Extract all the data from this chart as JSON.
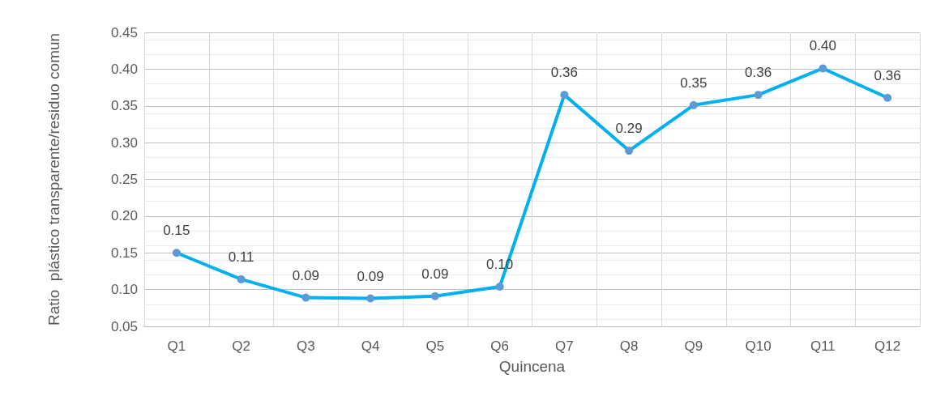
{
  "chart_data": {
    "type": "line",
    "xlabel": "Quincena",
    "ylabel": "Ratio  plástico transparente/residuo comun",
    "categories": [
      "Q1",
      "Q2",
      "Q3",
      "Q4",
      "Q5",
      "Q6",
      "Q7",
      "Q8",
      "Q9",
      "Q10",
      "Q11",
      "Q12"
    ],
    "series": [
      {
        "color": "#00b0f0",
        "values": [
          0.15,
          0.114,
          0.089,
          0.088,
          0.091,
          0.104,
          0.365,
          0.289,
          0.351,
          0.365,
          0.401,
          0.361
        ],
        "value_labels": [
          "0.15",
          "0.11",
          "0.09",
          "0.09",
          "0.09",
          "0.10",
          "0.36",
          "0.29",
          "0.35",
          "0.36",
          "0.40",
          "0.36"
        ]
      }
    ],
    "ylim": [
      0.05,
      0.45
    ],
    "yticks": [
      0.05,
      {
        "value": 0.1,
        "label": "0.10"
      },
      0.15,
      {
        "value": 0.2,
        "label": "0.20"
      },
      0.25,
      {
        "value": 0.3,
        "label": "0.30"
      },
      0.35,
      {
        "value": 0.4,
        "label": "0.40"
      },
      0.45
    ],
    "grid": true,
    "marker": "circle",
    "line_style": "solid"
  }
}
